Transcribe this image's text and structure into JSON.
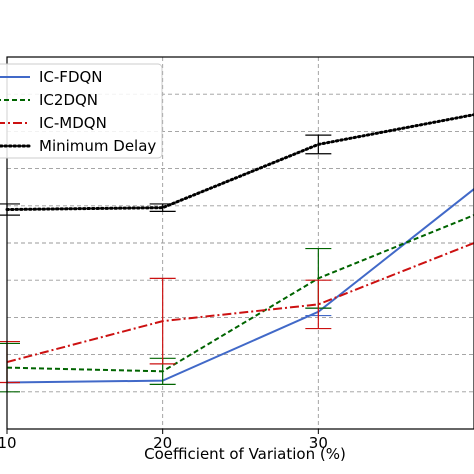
{
  "chart_data": {
    "type": "line",
    "title": "",
    "xlabel": "Coefficient of Variation (%)",
    "ylabel": "",
    "x": [
      10,
      20,
      30,
      40
    ],
    "x_ticks": [
      10,
      20,
      30
    ],
    "xlim": [
      10,
      40
    ],
    "ylim": [
      0,
      1
    ],
    "grid": true,
    "legend": {
      "placement": "top-left"
    },
    "series": [
      {
        "name": "IC-FDQN",
        "color": "#4169c8",
        "style": "solid",
        "values": [
          0.125,
          0.13,
          0.315,
          0.645
        ],
        "errors": [
          null,
          null,
          0.01,
          null
        ]
      },
      {
        "name": "IC2DQN",
        "color": "#006400",
        "style": "dashed",
        "values": [
          0.165,
          0.155,
          0.405,
          0.575
        ],
        "errors": [
          0.065,
          0.035,
          0.08,
          null
        ]
      },
      {
        "name": "IC-MDQN",
        "color": "#cc1111",
        "style": "dashdot",
        "values": [
          0.18,
          0.29,
          0.335,
          0.5
        ],
        "errors": [
          0.055,
          0.115,
          0.065,
          null
        ]
      },
      {
        "name": "Minimum Delay",
        "color": "#000000",
        "style": "dotted",
        "values": [
          0.59,
          0.595,
          0.765,
          0.845
        ],
        "errors": [
          0.015,
          0.01,
          0.025,
          null
        ]
      }
    ]
  }
}
